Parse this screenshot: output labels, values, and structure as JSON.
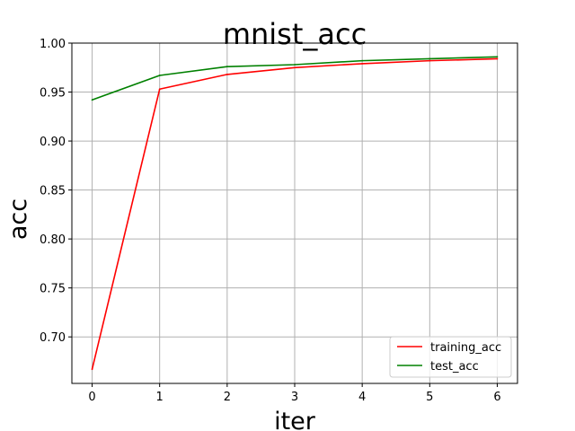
{
  "chart_data": {
    "type": "line",
    "title": "mnist_acc",
    "xlabel": "iter",
    "ylabel": "acc",
    "x": [
      0,
      1,
      2,
      3,
      4,
      5,
      6
    ],
    "xlim": [
      -0.3,
      6.3
    ],
    "ylim": [
      0.6525,
      1.0
    ],
    "xticks": [
      0,
      1,
      2,
      3,
      4,
      5,
      6
    ],
    "yticks": [
      0.7,
      0.75,
      0.8,
      0.85,
      0.9,
      0.95,
      1.0
    ],
    "xtick_labels": [
      "0",
      "1",
      "2",
      "3",
      "4",
      "5",
      "6"
    ],
    "ytick_labels": [
      "0.70",
      "0.75",
      "0.80",
      "0.85",
      "0.90",
      "0.95",
      "1.00"
    ],
    "grid": true,
    "legend_position": "lower-right",
    "series": [
      {
        "name": "training_acc",
        "color": "#ff0000",
        "values": [
          0.667,
          0.953,
          0.968,
          0.975,
          0.979,
          0.982,
          0.984
        ]
      },
      {
        "name": "test_acc",
        "color": "#008000",
        "values": [
          0.942,
          0.967,
          0.976,
          0.978,
          0.982,
          0.984,
          0.986
        ]
      }
    ]
  }
}
